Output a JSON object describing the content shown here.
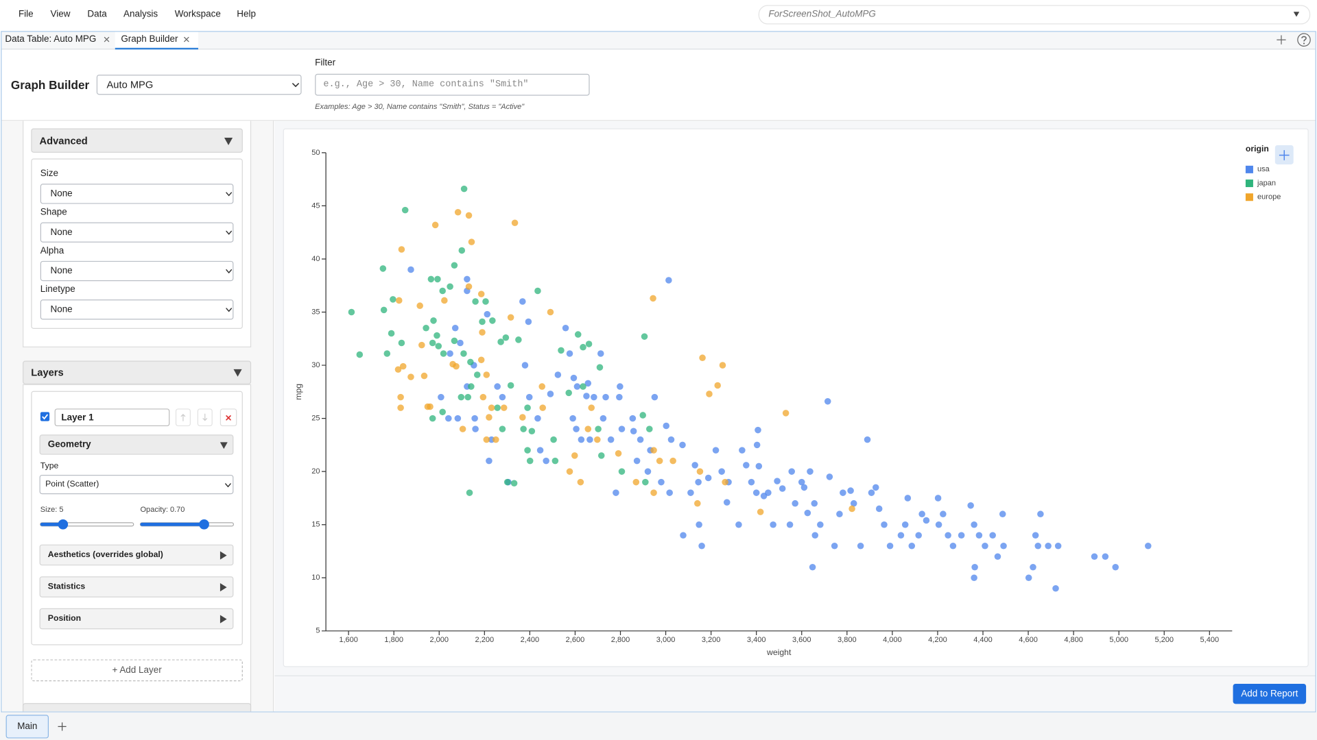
{
  "ui": {
    "menu": [
      "File",
      "View",
      "Data",
      "Analysis",
      "Workspace",
      "Help"
    ],
    "search": "ForScreenShot_AutoMPG",
    "tabs": [
      "Data Table: Auto MPG",
      "Graph Builder"
    ],
    "header": {
      "title": "Graph Builder",
      "dataset": "Auto MPG",
      "filter_label": "Filter",
      "filter_placeholder": "e.g., Age > 30, Name contains \"Smith\"",
      "examples": "Examples: Age > 30, Name contains \"Smith\", Status = \"Active\""
    },
    "advanced": {
      "title": "Advanced",
      "fields": [
        {
          "label": "Size",
          "value": "None"
        },
        {
          "label": "Shape",
          "value": "None"
        },
        {
          "label": "Alpha",
          "value": "None"
        },
        {
          "label": "Linetype",
          "value": "None"
        }
      ]
    },
    "layers": {
      "title": "Layers",
      "layer_name": "Layer 1",
      "geometry": "Geometry",
      "type_label": "Type",
      "type_value": "Point (Scatter)",
      "size_label": "Size: 5",
      "opacity_label": "Opacity: 0.70",
      "sections": [
        "Aesthetics (overrides global)",
        "Statistics",
        "Position"
      ],
      "add": "+ Add Layer"
    },
    "add_report": "Add to Report",
    "bottom_tabs": [
      "Main"
    ]
  },
  "chart_data": {
    "type": "scatter",
    "x_label": "weight",
    "y_label": "mpg",
    "legend_title": "origin",
    "legend": "top-right",
    "grid": false,
    "xlim": [
      1500,
      5500
    ],
    "ylim": [
      5,
      50
    ],
    "xticks": [
      {
        "value": 1600,
        "label": "1,600"
      },
      {
        "value": 1800,
        "label": "1,800"
      },
      {
        "value": 2000,
        "label": "2,000"
      },
      {
        "value": 2200,
        "label": "2,200"
      },
      {
        "value": 2400,
        "label": "2,400"
      },
      {
        "value": 2600,
        "label": "2,600"
      },
      {
        "value": 2800,
        "label": "2,800"
      },
      {
        "value": 3000,
        "label": "3,000"
      },
      {
        "value": 3200,
        "label": "3,200"
      },
      {
        "value": 3400,
        "label": "3,400"
      },
      {
        "value": 3600,
        "label": "3,600"
      },
      {
        "value": 3800,
        "label": "3,800"
      },
      {
        "value": 4000,
        "label": "4,000"
      },
      {
        "value": 4200,
        "label": "4,200"
      },
      {
        "value": 4400,
        "label": "4,400"
      },
      {
        "value": 4600,
        "label": "4,600"
      },
      {
        "value": 4800,
        "label": "4,800"
      },
      {
        "value": 5000,
        "label": "5,000"
      },
      {
        "value": 5200,
        "label": "5,200"
      },
      {
        "value": 5400,
        "label": "5,400"
      }
    ],
    "yticks": [
      5,
      10,
      15,
      20,
      25,
      30,
      35,
      40,
      45,
      50
    ],
    "series": [
      {
        "name": "usa",
        "color": "#4f86ec",
        "x": [
          1875,
          2008,
          2041,
          2082,
          2123,
          2123,
          2071,
          2048,
          2093,
          2123,
          2153,
          2212,
          2157,
          2160,
          2220,
          2231,
          2257,
          2279,
          2305,
          2368,
          2394,
          2379,
          2398,
          2435,
          2446,
          2472,
          2491,
          2524,
          2558,
          2576,
          2594,
          2609,
          2590,
          2605,
          2627,
          2650,
          2657,
          2665,
          2683,
          2724,
          2735,
          2758,
          2798,
          2795,
          2806,
          2713,
          2780,
          2854,
          2858,
          2888,
          2873,
          2921,
          2932,
          2951,
          2980,
          3017,
          3002,
          3013,
          3024,
          3074,
          3110,
          3129,
          3144,
          3147,
          3159,
          3077,
          3188,
          3221,
          3247,
          3277,
          3270,
          3322,
          3337,
          3355,
          3378,
          3400,
          3403,
          3407,
          3411,
          3433,
          3452,
          3474,
          3492,
          3515,
          3548,
          3556,
          3571,
          3600,
          3611,
          3626,
          3637,
          3656,
          3659,
          3648,
          3682,
          3715,
          3723,
          3745,
          3767,
          3782,
          3816,
          3830,
          3860,
          3890,
          3908,
          3927,
          3942,
          3964,
          3990,
          4038,
          4057,
          4068,
          4086,
          4116,
          4131,
          4150,
          4202,
          4205,
          4224,
          4246,
          4268,
          4305,
          4346,
          4361,
          4364,
          4361,
          4383,
          4409,
          4443,
          4465,
          4487,
          4491,
          4602,
          4621,
          4632,
          4654,
          4643,
          4688,
          4721,
          4732,
          4892,
          4940,
          4985,
          5129
        ],
        "values": [
          39,
          27,
          25,
          25,
          38.1,
          37,
          33.5,
          31.1,
          32.1,
          28,
          30,
          34.8,
          25,
          24,
          21,
          23,
          28,
          27,
          19,
          36,
          34.1,
          30,
          27,
          25,
          22,
          21,
          27.3,
          29.1,
          33.5,
          31.1,
          28.8,
          28,
          25,
          24,
          23,
          27.1,
          28.3,
          23,
          27,
          25,
          27,
          23,
          28,
          27,
          24,
          31.1,
          18,
          25,
          23.8,
          23,
          21,
          20,
          22,
          27,
          19,
          18,
          24.3,
          38,
          23,
          22.5,
          18,
          20.6,
          19,
          15,
          13,
          14,
          19.4,
          22,
          20,
          19,
          17.1,
          15,
          22,
          20.6,
          19,
          18,
          22.5,
          23.9,
          20.5,
          17.7,
          18,
          15,
          19.1,
          18.4,
          15,
          20,
          17,
          19,
          18.5,
          16.1,
          20,
          17,
          14,
          11,
          15,
          26.6,
          19.5,
          13,
          16,
          18,
          18.2,
          17,
          13,
          23,
          18,
          18.5,
          16.5,
          15,
          13,
          14,
          15,
          17.5,
          13,
          14,
          16,
          15.4,
          17.5,
          15,
          16,
          14,
          13,
          14,
          16.8,
          15,
          11,
          10,
          14,
          13,
          14,
          12,
          16,
          13,
          10,
          11,
          14,
          16,
          13,
          13,
          9,
          13,
          12,
          12,
          11,
          13
        ]
      },
      {
        "name": "japan",
        "color": "#2fb47c",
        "x": [
          1613,
          1649,
          1850,
          2110,
          1752,
          1756,
          1789,
          1796,
          1770,
          1834,
          1964,
          1993,
          2015,
          2048,
          2067,
          2100,
          1975,
          1942,
          1990,
          1971,
          1997,
          2019,
          2067,
          2108,
          2138,
          2168,
          2141,
          2097,
          2127,
          2160,
          2205,
          2190,
          2235,
          2272,
          2294,
          2350,
          2435,
          2316,
          2257,
          2279,
          2372,
          2390,
          2409,
          2390,
          2401,
          2505,
          2512,
          2538,
          2572,
          2613,
          2635,
          2661,
          2635,
          2709,
          2702,
          2716,
          2806,
          2899,
          2928,
          2906,
          2910,
          2301,
          2134,
          2331,
          2015,
          1971
        ],
        "values": [
          35,
          31,
          44.6,
          46.6,
          39.1,
          35.2,
          33,
          36.2,
          31.1,
          32.1,
          38.1,
          38.1,
          37,
          37.4,
          39.4,
          40.8,
          34.2,
          33.5,
          32.8,
          32.1,
          31.8,
          31.1,
          32.3,
          31.1,
          30.3,
          29.1,
          28,
          27,
          27,
          36,
          36,
          34.1,
          34.2,
          32.2,
          32.6,
          32.4,
          37,
          28.1,
          26,
          24,
          24,
          26,
          23.8,
          22,
          21,
          23,
          21,
          31.4,
          27.4,
          32.9,
          31.7,
          32,
          28,
          29.8,
          24,
          21.5,
          20,
          25.3,
          24,
          32.7,
          19,
          19,
          18,
          18.9,
          25.6,
          25
        ]
      },
      {
        "name": "europe",
        "color": "#f0a52b",
        "x": [
          1834,
          1983,
          2083,
          2131,
          2143,
          2334,
          2131,
          1823,
          1915,
          2023,
          2186,
          2316,
          2190,
          1841,
          1819,
          1875,
          1830,
          1830,
          1923,
          1934,
          1949,
          1960,
          2060,
          2075,
          2209,
          2186,
          2194,
          2231,
          2286,
          2220,
          2250,
          2104,
          2209,
          2368,
          2454,
          2491,
          2457,
          2576,
          2598,
          2624,
          2672,
          2657,
          2698,
          2791,
          2944,
          2869,
          2947,
          2973,
          2947,
          3032,
          3162,
          3192,
          3229,
          3251,
          3151,
          3140,
          3262,
          3530,
          3418,
          3822
        ],
        "values": [
          40.9,
          43.2,
          44.4,
          44.1,
          41.6,
          43.4,
          37.4,
          36.1,
          35.6,
          36.1,
          36.7,
          34.5,
          33.1,
          29.9,
          29.6,
          28.9,
          27,
          26,
          31.9,
          29,
          26.1,
          26.1,
          30.1,
          29.9,
          29.1,
          30.5,
          27,
          26,
          26,
          25.1,
          23,
          24,
          23,
          25.1,
          28,
          35,
          26,
          20,
          21.5,
          19,
          26,
          24,
          23,
          21.7,
          36.3,
          19,
          22,
          21,
          18,
          21,
          30.7,
          27.3,
          28.1,
          30,
          20,
          17,
          19,
          25.5,
          16.2,
          16.5
        ]
      }
    ]
  }
}
